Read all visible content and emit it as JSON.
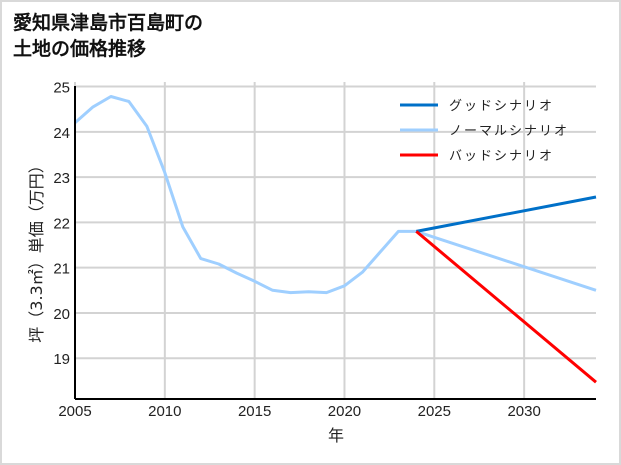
{
  "title_lines": [
    "愛知県津島市百島町の",
    "土地の価格推移"
  ],
  "chart_data": {
    "type": "line",
    "title": "愛知県津島市百島町の土地の価格推移",
    "xlabel": "年",
    "ylabel": "坪（3.3㎡）単価（万円）",
    "xlim": [
      2005,
      2034
    ],
    "ylim": [
      18.1,
      25.1
    ],
    "xticks": [
      2005,
      2010,
      2015,
      2020,
      2025,
      2030
    ],
    "yticks": [
      19,
      20,
      21,
      22,
      23,
      24,
      25
    ],
    "grid": true,
    "legend_position": "upper right",
    "series": [
      {
        "name": "グッドシナリオ",
        "color": "#0070c8",
        "x": [
          2024,
          2034
        ],
        "values": [
          21.8,
          22.56
        ]
      },
      {
        "name": "ノーマルシナリオ",
        "color": "#9fcfff",
        "x": [
          2005,
          2006,
          2007,
          2008,
          2009,
          2010,
          2011,
          2012,
          2013,
          2014,
          2015,
          2016,
          2017,
          2018,
          2019,
          2020,
          2021,
          2022,
          2023,
          2024,
          2034
        ],
        "values": [
          24.2,
          24.55,
          24.78,
          24.67,
          24.12,
          23.1,
          21.9,
          21.2,
          21.08,
          20.88,
          20.7,
          20.5,
          20.45,
          20.47,
          20.45,
          20.6,
          20.9,
          21.35,
          21.8,
          21.8,
          20.5
        ]
      },
      {
        "name": "バッドシナリオ",
        "color": "#ff0000",
        "x": [
          2024,
          2034
        ],
        "values": [
          21.8,
          18.47
        ]
      }
    ]
  }
}
